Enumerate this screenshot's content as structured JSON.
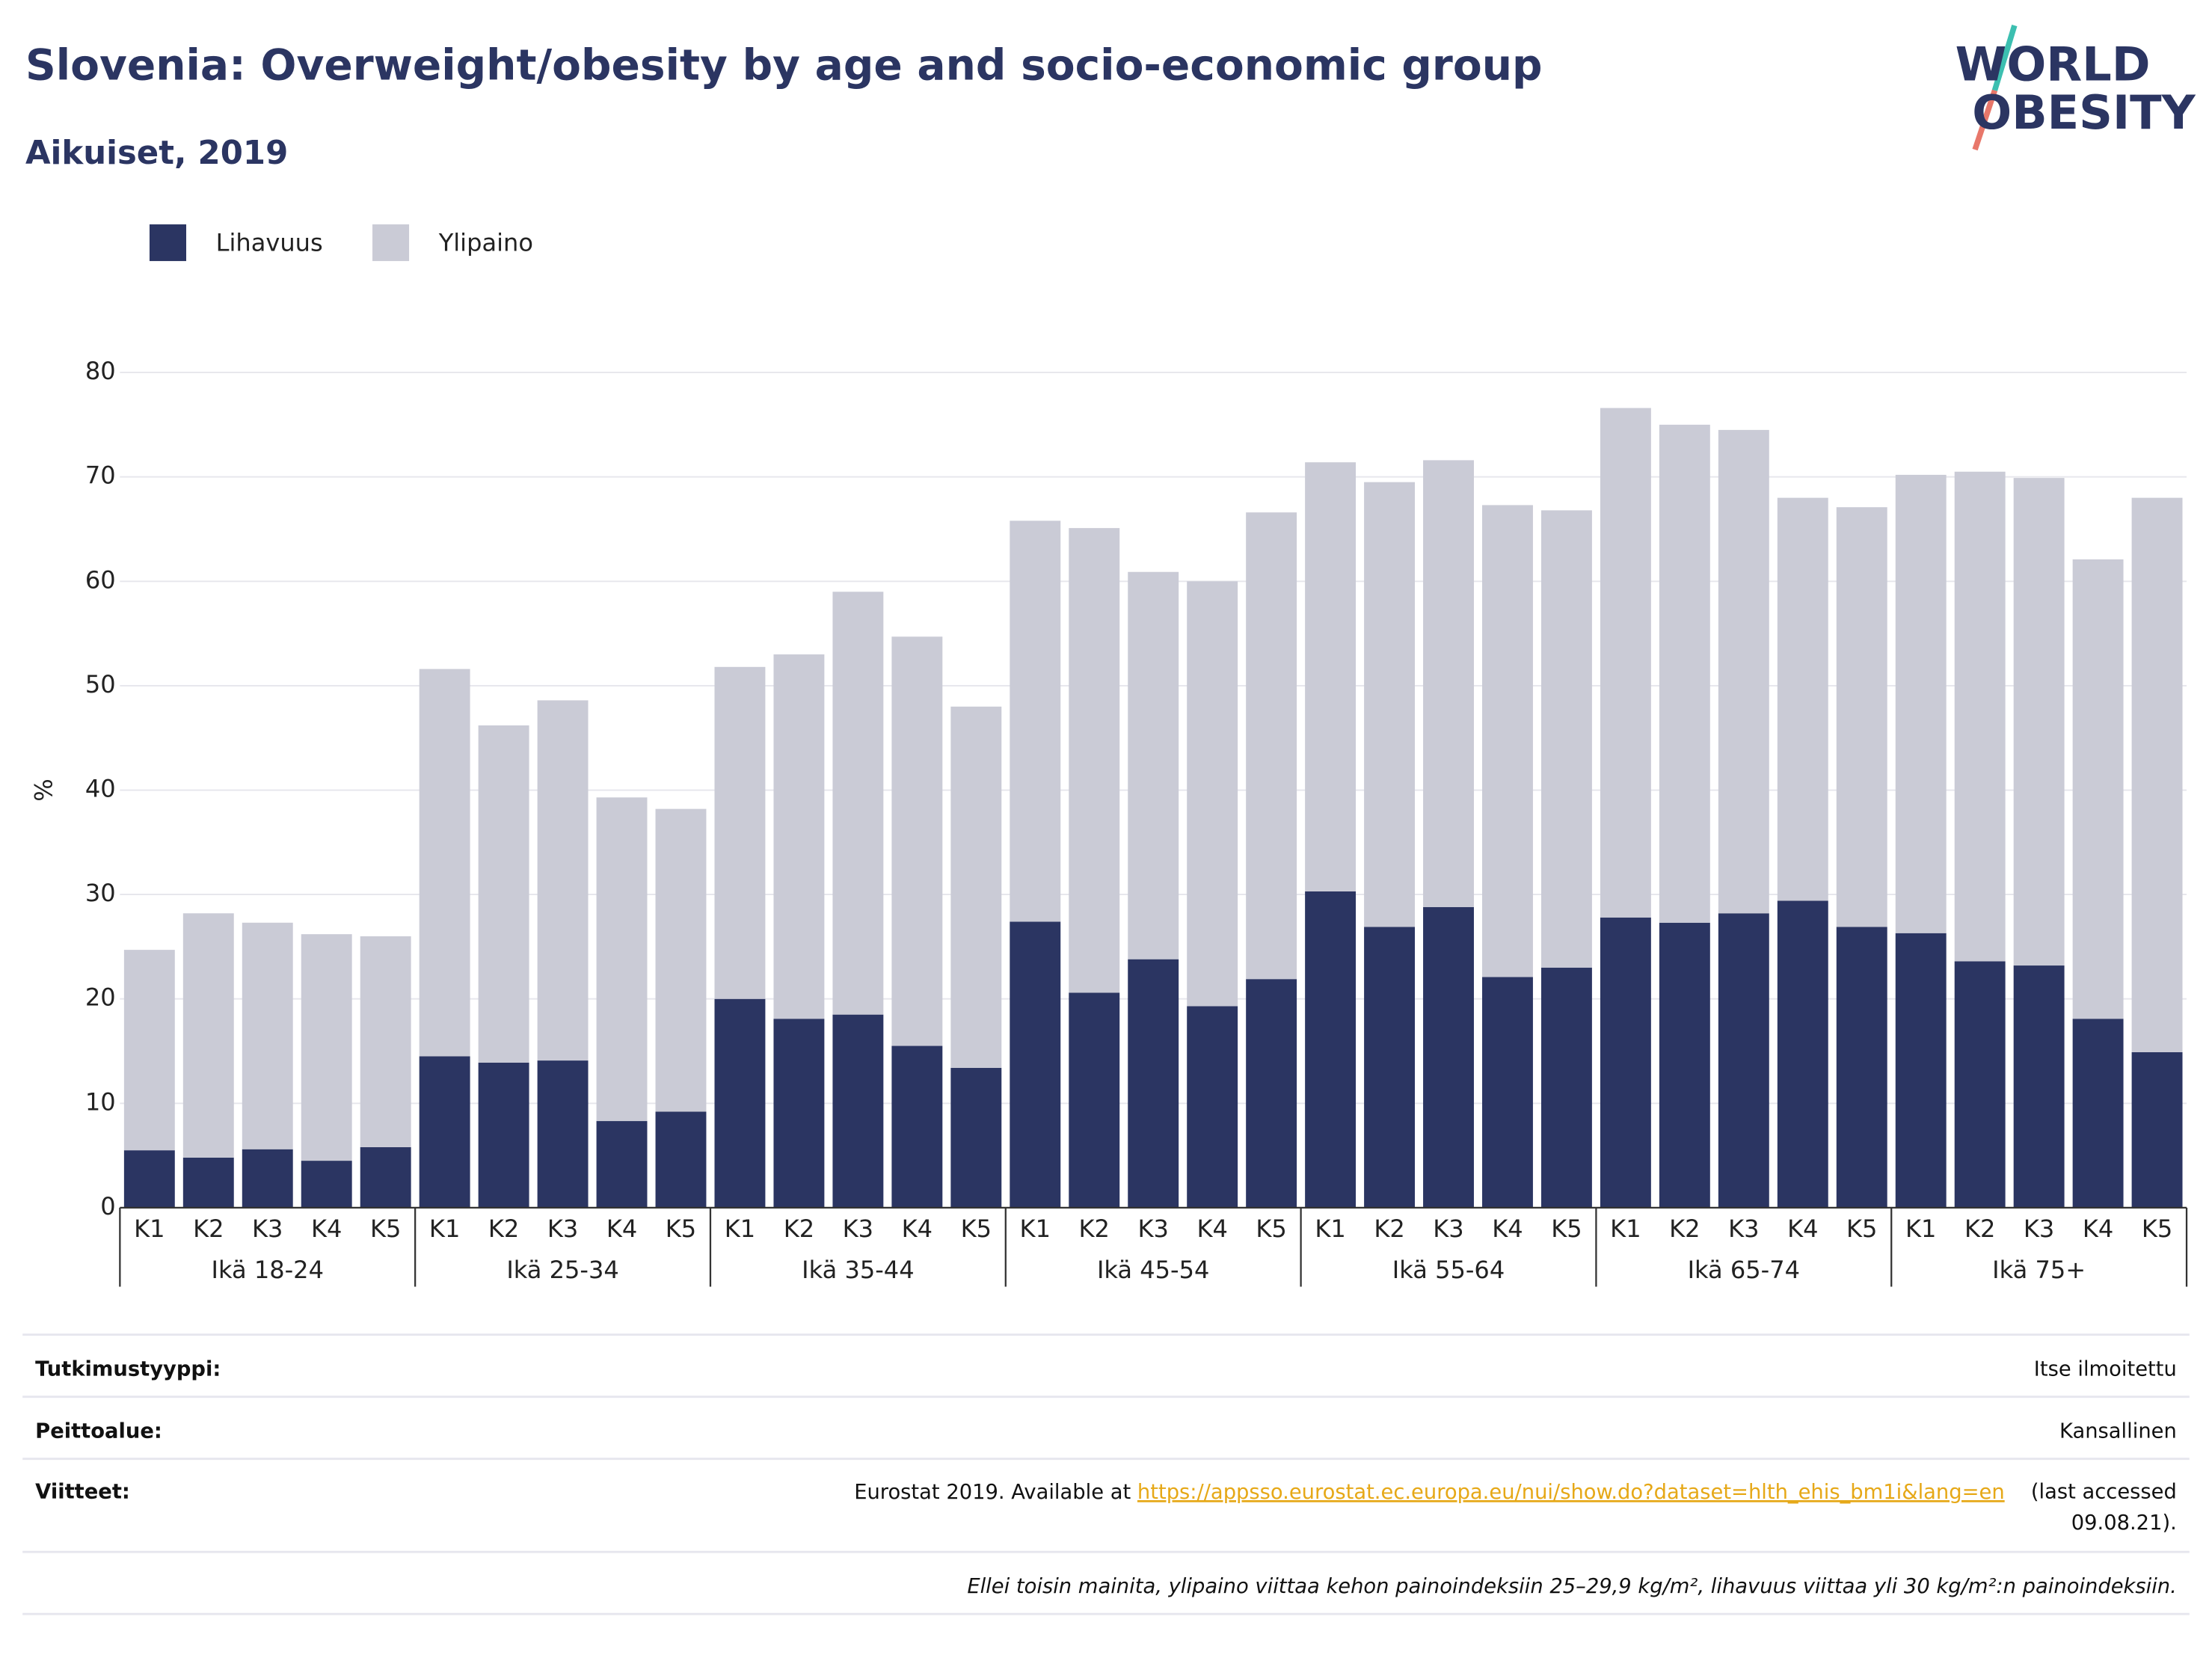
{
  "chart_data": {
    "type": "stacked_bar",
    "title": "Slovenia: Overweight/obesity by age and socio-economic group",
    "subtitle": "Aikuiset, 2019",
    "y_label": "%",
    "logo": [
      "WORLD",
      "OBESITY"
    ],
    "groups": [
      "Ikä 18-24",
      "Ikä 25-34",
      "Ikä 35-44",
      "Ikä 45-54",
      "Ikä 55-64",
      "Ikä 65-74",
      "Ikä 75+"
    ],
    "categories": [
      "K1",
      "K2",
      "K3",
      "K4",
      "K5",
      "K1",
      "K2",
      "K3",
      "K4",
      "K5",
      "K1",
      "K2",
      "K3",
      "K4",
      "K5",
      "K1",
      "K2",
      "K3",
      "K4",
      "K5",
      "K1",
      "K2",
      "K3",
      "K4",
      "K5",
      "K1",
      "K2",
      "K3",
      "K4",
      "K5",
      "K1",
      "K2",
      "K3",
      "K4",
      "K5"
    ],
    "series": [
      {
        "name": "Lihavuus",
        "color": "#2b3562",
        "values": [
          5.5,
          4.8,
          5.6,
          4.5,
          5.8,
          14.5,
          13.9,
          14.1,
          8.3,
          9.2,
          20.0,
          18.1,
          18.5,
          15.5,
          13.4,
          27.4,
          20.6,
          23.8,
          19.3,
          21.9,
          30.3,
          26.9,
          28.8,
          22.1,
          23.0,
          27.8,
          27.3,
          28.2,
          29.4,
          26.9,
          26.3,
          23.6,
          23.2,
          18.1,
          14.9
        ]
      },
      {
        "name": "Ylipaino",
        "color": "#cacbd6",
        "values": [
          19.2,
          23.4,
          21.7,
          21.7,
          20.2,
          37.1,
          32.3,
          34.5,
          31.0,
          29.0,
          31.8,
          34.9,
          40.5,
          39.2,
          34.6,
          38.4,
          44.5,
          37.1,
          40.7,
          44.7,
          41.1,
          42.6,
          42.8,
          45.2,
          43.8,
          48.8,
          47.7,
          46.3,
          38.6,
          40.2,
          43.9,
          46.9,
          46.7,
          44.0,
          53.1
        ]
      }
    ],
    "ylim": [
      0,
      80
    ],
    "yticks": [
      0,
      10,
      20,
      30,
      40,
      50,
      60,
      70,
      80
    ],
    "grid": true,
    "legend": "top-left"
  },
  "footer": {
    "rows": [
      {
        "label": "Tutkimustyyppi:",
        "value": "Itse ilmoitettu"
      },
      {
        "label": "Peittoalue:",
        "value": "Kansallinen"
      }
    ],
    "reference": {
      "label": "Viitteet:",
      "prefix": "Eurostat 2019. Available at ",
      "link": "https://appsso.eurostat.ec.europa.eu/nui/show.do?dataset=hlth_ehis_bm1i&lang=en",
      "suffix": [
        "(last accessed",
        "09.08.21)."
      ]
    },
    "note": "Ellei toisin mainita, ylipaino viittaa kehon painoindeksiin 25–29,9 kg/m², lihavuus viittaa yli 30 kg/m²:n painoindeksiin."
  }
}
